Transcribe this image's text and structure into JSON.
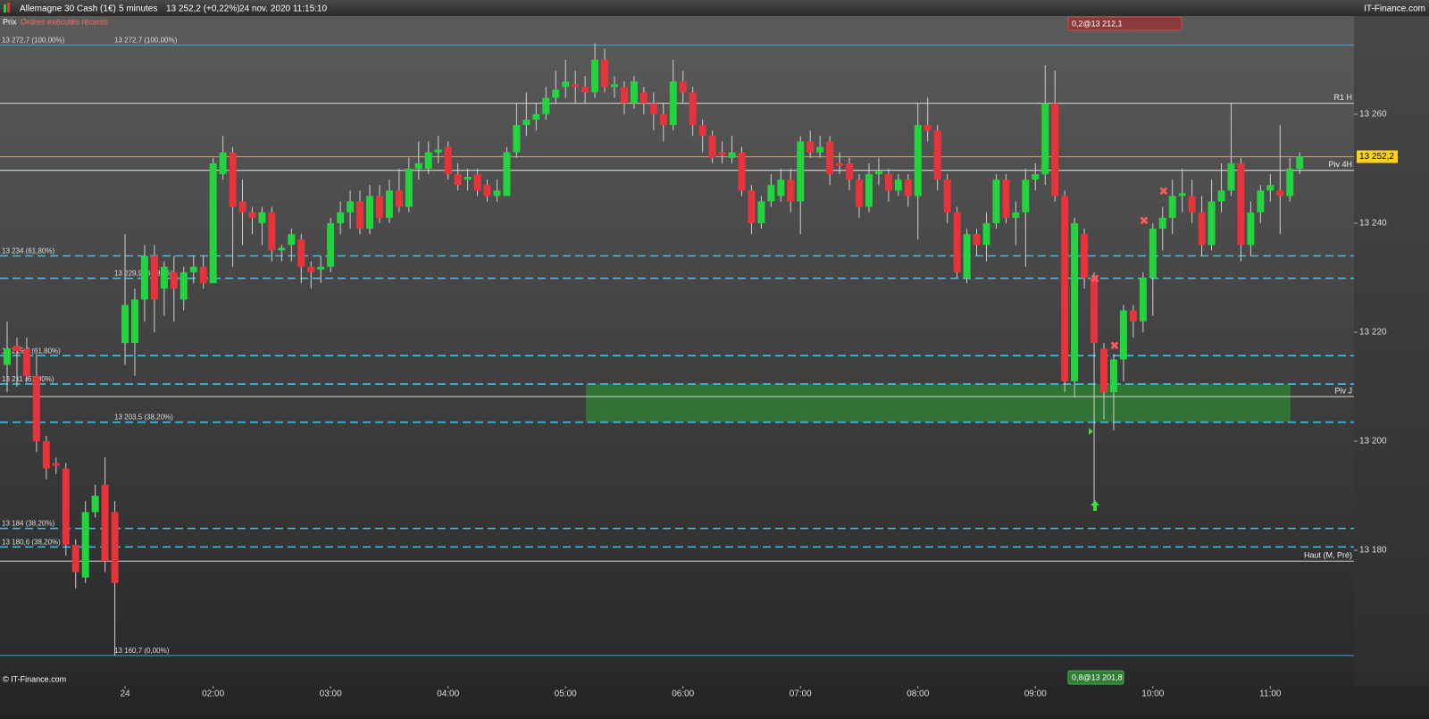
{
  "header": {
    "instrument": "Allemagne 30 Cash (1€)",
    "period": "5 minutes",
    "quote": "13 252,2 (+0,22%)",
    "datetime": "24 nov. 2020 11:15:10",
    "brand": "IT-Finance.com",
    "tabs": [
      "Prix",
      "Ordres exécutés récents"
    ],
    "footer": "© IT-Finance.com"
  },
  "chart_data": {
    "type": "candlestick",
    "categories": [
      null,
      null,
      null,
      null,
      null,
      null,
      null,
      null,
      null,
      null,
      null,
      null,
      "24",
      null,
      null,
      null,
      null,
      null,
      null,
      null,
      null,
      "02:00",
      null,
      null,
      null,
      null,
      null,
      null,
      null,
      null,
      null,
      null,
      null,
      "03:00",
      null,
      null,
      null,
      null,
      null,
      null,
      null,
      null,
      null,
      null,
      null,
      "04:00",
      null,
      null,
      null,
      null,
      null,
      null,
      null,
      null,
      null,
      null,
      null,
      "05:00",
      null,
      null,
      null,
      null,
      null,
      null,
      null,
      null,
      null,
      null,
      null,
      "06:00",
      null,
      null,
      null,
      null,
      null,
      null,
      null,
      null,
      null,
      null,
      null,
      "07:00",
      null,
      null,
      null,
      null,
      null,
      null,
      null,
      null,
      null,
      null,
      null,
      "08:00",
      null,
      null,
      null,
      null,
      null,
      null,
      null,
      null,
      null,
      null,
      null,
      "09:00",
      null,
      null,
      null,
      null,
      null,
      null,
      null,
      null,
      null,
      null,
      null,
      "10:00",
      null,
      null,
      null,
      null,
      null,
      null,
      null,
      null,
      null,
      null,
      null,
      "11:00",
      null,
      null,
      null
    ],
    "open": [
      13214,
      13217.5,
      13217,
      13212,
      13200,
      13196,
      13195,
      13181,
      13175,
      13187,
      13192,
      13187,
      13218,
      13218,
      13226,
      13234,
      13228,
      13231,
      13226,
      13231,
      13232,
      13229,
      13249,
      13253,
      13244,
      13242,
      13240,
      13242,
      13235,
      13236,
      13237,
      13232,
      13231.5,
      13232,
      13240,
      13242,
      13244,
      13239,
      13245,
      13241,
      13246,
      13243,
      13250,
      13250,
      13253,
      13254,
      13249,
      13248,
      13249,
      13247,
      13245,
      13245,
      13253,
      13258,
      13259,
      13260,
      13263,
      13265,
      13265.5,
      13265,
      13264,
      13270,
      13265,
      13265,
      13262,
      13264,
      13262,
      13260,
      13258,
      13266,
      13264,
      13258,
      13256,
      13253,
      13252,
      13253,
      13246,
      13240,
      13244,
      13245,
      13248,
      13244,
      13255,
      13253,
      13255,
      13251,
      13251,
      13248,
      13243,
      13249,
      13249,
      13246,
      13248,
      13245,
      13258,
      13257,
      13248,
      13242,
      13230,
      13238,
      13236,
      13240,
      13248,
      13241,
      13242,
      13248,
      13249,
      13262,
      13245,
      13211,
      13238,
      13230,
      13217,
      13209,
      13215,
      13224,
      13222,
      13230,
      13239,
      13241,
      13245,
      13245,
      13242,
      13236,
      13244,
      13246,
      13251,
      13236,
      13242,
      13246,
      13246,
      13245,
      13250
    ],
    "high": [
      13222,
      13219,
      13219,
      13216,
      13201,
      13197,
      13196,
      13182,
      13189,
      13192,
      13197,
      13189,
      13238,
      13228,
      13236,
      13236,
      13233,
      13234,
      13232,
      13234,
      13234,
      13252,
      13256,
      13254,
      13248,
      13243,
      13243,
      13243,
      13236,
      13239,
      13238,
      13233,
      13234,
      13241,
      13244,
      13246,
      13246,
      13247,
      13247,
      13248,
      13250,
      13252,
      13255,
      13255,
      13256,
      13255,
      13251,
      13250,
      13250,
      13248,
      13248,
      13254,
      13262,
      13264,
      13262,
      13265,
      13268,
      13270,
      13268,
      13267,
      13273,
      13272,
      13267,
      13266,
      13267,
      13265,
      13264,
      13262,
      13270,
      13268,
      13265,
      13259,
      13257,
      13255,
      13256,
      13254,
      13247,
      13245,
      13249,
      13250,
      13250,
      13256,
      13257,
      13256,
      13256,
      13253,
      13252,
      13249,
      13251,
      13252,
      13250,
      13249,
      13249,
      13262,
      13263,
      13258,
      13249,
      13243,
      13239,
      13239,
      13242,
      13249,
      13249,
      13244,
      13250,
      13251,
      13269,
      13268,
      13246,
      13241,
      13239,
      13231,
      13218,
      13216,
      13225,
      13225,
      13231,
      13240,
      13243,
      13248,
      13250,
      13248,
      13245,
      13248,
      13251,
      13262,
      13252,
      13244,
      13247,
      13249,
      13258,
      13252,
      13253
    ],
    "low": [
      13209,
      13210,
      13211,
      13198,
      13193,
      13194,
      13179,
      13173,
      13174,
      13186,
      13176,
      13160.7,
      13214,
      13212,
      13222,
      13220,
      13223,
      13222,
      13224,
      13229,
      13228,
      13229,
      13248,
      13232,
      13236,
      13238,
      13236,
      13233,
      13233,
      13233,
      13229,
      13228,
      13229,
      13231,
      13238,
      13239,
      13238,
      13238,
      13240,
      13240,
      13242,
      13242,
      13248,
      13249,
      13251,
      13248,
      13246,
      13246,
      13245,
      13244,
      13244,
      13245,
      13252,
      13256,
      13257,
      13259,
      13262,
      13263,
      13262,
      13262,
      13263,
      13264,
      13263,
      13260,
      13261,
      13260,
      13257,
      13255,
      13257,
      13262,
      13256,
      13253,
      13251,
      13251,
      13251,
      13245,
      13238,
      13239,
      13243,
      13244,
      13242,
      13238,
      13252,
      13252,
      13247,
      13249,
      13246,
      13241,
      13242,
      13247,
      13244,
      13245,
      13243,
      13237,
      13255,
      13246,
      13240,
      13230,
      13229,
      13234,
      13233,
      13239,
      13240,
      13236,
      13232,
      13246,
      13247,
      13244,
      13209,
      13208,
      13228,
      13189,
      13204,
      13202,
      13211,
      13219,
      13220,
      13223,
      13235,
      13238,
      13242,
      13240,
      13234,
      13235,
      13242,
      13245,
      13233,
      13234,
      13240,
      13244,
      13238,
      13244,
      13249
    ],
    "close": [
      13217,
      13216.5,
      13212,
      13200,
      13195,
      13195.5,
      13181,
      13176,
      13187,
      13190,
      13178,
      13174,
      13225,
      13226,
      13234,
      13226,
      13232,
      13228,
      13231,
      13232,
      13229,
      13251,
      13253,
      13243,
      13242,
      13241,
      13242,
      13235,
      13235.5,
      13238,
      13232,
      13231,
      13232,
      13240,
      13242,
      13244,
      13239,
      13245,
      13241,
      13246,
      13243,
      13250,
      13251,
      13253,
      13253.5,
      13249,
      13247,
      13248.5,
      13246,
      13245,
      13246,
      13253,
      13258,
      13259,
      13260,
      13263,
      13264.5,
      13266,
      13265,
      13264,
      13270,
      13265,
      13265.5,
      13262,
      13266,
      13262,
      13260,
      13258,
      13266,
      13264,
      13258,
      13256,
      13252,
      13252.5,
      13253,
      13246,
      13240,
      13244,
      13247,
      13248,
      13244,
      13255,
      13253,
      13254,
      13249,
      13250.5,
      13248,
      13243,
      13249,
      13249.5,
      13246,
      13248,
      13245,
      13258,
      13257,
      13248,
      13242,
      13231,
      13238,
      13236,
      13240,
      13248,
      13241,
      13242,
      13248,
      13249,
      13262,
      13245,
      13211,
      13240,
      13230,
      13218,
      13209,
      13215,
      13224,
      13222,
      13230,
      13239,
      13241,
      13245,
      13245.5,
      13242,
      13236,
      13244,
      13246,
      13251,
      13236,
      13242,
      13246,
      13247,
      13245,
      13250,
      13252.2
    ],
    "up_color": "#22d43e",
    "down_color": "#e8333a",
    "ylim": [
      13155.1,
      13278
    ],
    "yticks": [
      {
        "value": 13260,
        "label": "13 260"
      },
      {
        "value": 13240,
        "label": "13 240"
      },
      {
        "value": 13220,
        "label": "13 220"
      },
      {
        "value": 13200,
        "label": "13 200"
      },
      {
        "value": 13180,
        "label": "13 180"
      }
    ],
    "last_price": {
      "value": 13252.2,
      "label": "13 252,2",
      "color": "#f0a030"
    },
    "levels": [
      {
        "value": 13272.7,
        "label": "13 272,7 (100,00%)",
        "style": "solid",
        "color": "#3fa9e0",
        "side": "left"
      },
      {
        "value": 13262,
        "label": "R1 H",
        "style": "solid",
        "color": "#d8d8d8",
        "side": "right"
      },
      {
        "value": 13249.7,
        "label": "Piv 4H",
        "style": "solid",
        "color": "#e8e8e8",
        "side": "right"
      },
      {
        "value": 13234,
        "label": "13 234 (61,80%)",
        "style": "dashed",
        "color": "#3cc0f0",
        "side": "left"
      },
      {
        "value": 13229.9,
        "label": "13 229,9 (61,80%)",
        "style": "dashed",
        "color": "#3cc0f0",
        "side": "left"
      },
      {
        "value": 13215.7,
        "label": "13 215,7 (61,80%)",
        "style": "dashed",
        "color": "#3cc0f0",
        "side": "left"
      },
      {
        "value": 13210.5,
        "label": "13 211 (61,80%)",
        "style": "dashed",
        "color": "#3cc0f0",
        "side": "left"
      },
      {
        "value": 13208.2,
        "label": "Piv J",
        "style": "solid",
        "color": "#d8d8d8",
        "side": "right"
      },
      {
        "value": 13203.5,
        "label": "13 203,5 (38,20%)",
        "style": "dashed",
        "color": "#3cc0f0",
        "side": "left"
      },
      {
        "value": 13184,
        "label": "13 184 (38,20%)",
        "style": "dashed",
        "color": "#3cc0f0",
        "side": "left"
      },
      {
        "value": 13180.6,
        "label": "13 180,6 (38,20%)",
        "style": "dashed",
        "color": "#3cc0f0",
        "side": "left"
      },
      {
        "value": 13178,
        "label": "Haut (M, Pré)",
        "style": "solid",
        "color": "#d8d8d8",
        "side": "right"
      },
      {
        "value": 13160.7,
        "label": "13 160,7 (0,00%)",
        "style": "solid",
        "color": "#3fa9e0",
        "side": "left"
      }
    ],
    "zone": {
      "values": [
        13203.5,
        13210.5
      ],
      "color": "#2f7d32"
    },
    "annotations": [
      "0,2@13 212,1",
      "0,8@13 201,8"
    ]
  }
}
